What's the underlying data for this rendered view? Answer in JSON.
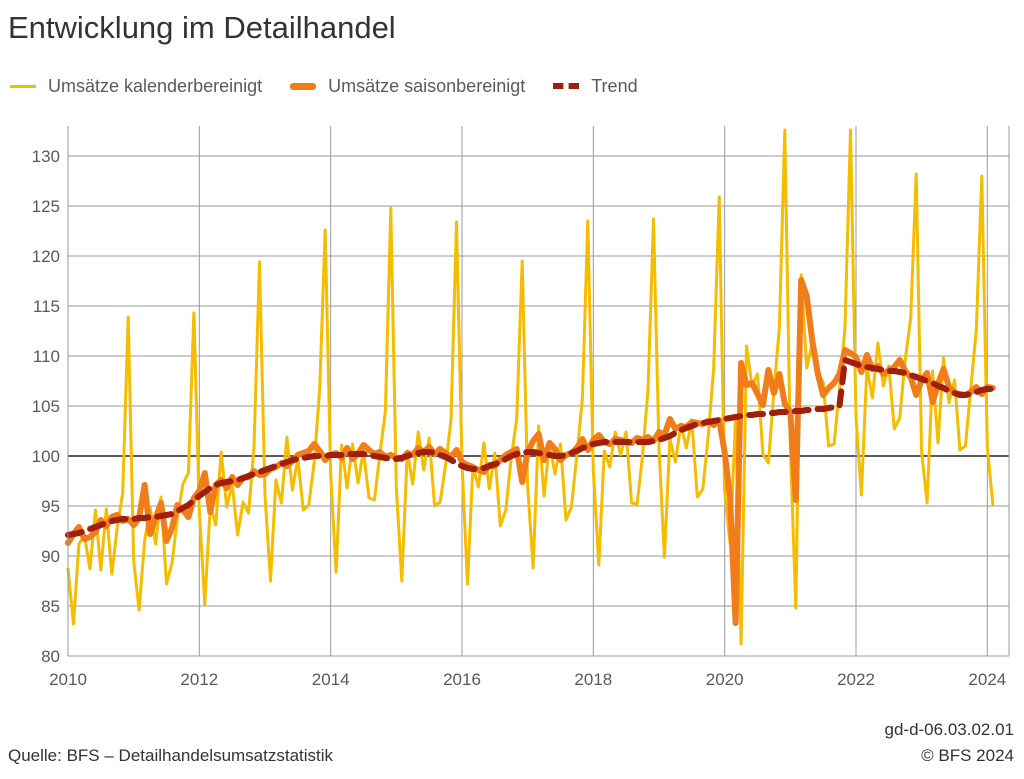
{
  "title": "Entwicklung im Detailhandel",
  "source": "Quelle: BFS – Detailhandelsumsatzstatistik",
  "code": "gd-d-06.03.02.01",
  "copyright": "© BFS 2024",
  "chart_data": {
    "type": "line",
    "title": "Entwicklung im Detailhandel",
    "xlabel": "",
    "ylabel": "",
    "xlim": [
      2010,
      2024.33
    ],
    "ylim": [
      80,
      133
    ],
    "x_ticks": [
      "2010",
      "2012",
      "2014",
      "2016",
      "2018",
      "2020",
      "2022",
      "2024"
    ],
    "y_ticks": [
      "80",
      "85",
      "90",
      "95",
      "100",
      "105",
      "110",
      "115",
      "120",
      "125",
      "130"
    ],
    "reference_line": 100,
    "grid": true,
    "legend_position": "top-left",
    "x_start": 2010,
    "x_step": 0.08333,
    "series": [
      {
        "name": "Umsätze kalenderbereinigt",
        "color": "#F5BC00",
        "style": "solid-thin",
        "values": [
          88.7,
          83.2,
          91.2,
          92.1,
          88.7,
          94.6,
          88.6,
          94.7,
          88.2,
          92.8,
          96.3,
          113.9,
          89.5,
          84.6,
          91.5,
          94.9,
          91.2,
          95.9,
          87.2,
          89.3,
          93.8,
          97.2,
          98.3,
          114.3,
          94.5,
          85.2,
          95.1,
          93.1,
          100.4,
          94.9,
          97.2,
          92.1,
          95.4,
          94.3,
          100.9,
          119.4,
          96.1,
          87.5,
          97.6,
          95.3,
          101.9,
          96.6,
          99.8,
          94.6,
          95.1,
          99.4,
          106.7,
          122.6,
          98.1,
          88.4,
          101.1,
          96.8,
          101.2,
          97.3,
          100.5,
          95.8,
          95.6,
          100.2,
          104.5,
          124.8,
          96.9,
          87.5,
          100.5,
          97.2,
          102.4,
          98.6,
          101.8,
          95.0,
          95.4,
          99.1,
          103.6,
          123.4,
          99.3,
          87.2,
          99.0,
          96.9,
          101.3,
          96.7,
          100.3,
          93.0,
          94.6,
          99.8,
          103.7,
          119.5,
          97.1,
          88.8,
          103.0,
          96.0,
          101.3,
          98.2,
          101.2,
          93.6,
          94.9,
          100.1,
          105.8,
          123.5,
          98.6,
          89.1,
          100.5,
          98.9,
          102.4,
          100.1,
          102.4,
          95.3,
          95.2,
          100.1,
          106.6,
          123.7,
          100.8,
          89.9,
          101.7,
          99.4,
          103.2,
          100.8,
          103.6,
          95.9,
          96.7,
          102.0,
          108.8,
          125.9,
          96.5,
          91.2,
          103.8,
          81.2,
          111.0,
          107.0,
          108.2,
          100.2,
          99.3,
          106.5,
          112.9,
          132.6,
          101.1,
          84.8,
          118.1,
          108.8,
          111.2,
          108.2,
          107.4,
          101.0,
          101.2,
          106.7,
          112.8,
          132.6,
          103.9,
          96.1,
          108.9,
          105.8,
          111.3,
          107.0,
          109.0,
          102.7,
          103.8,
          109.6,
          113.8,
          128.2,
          100.4,
          95.3,
          108.5,
          101.3,
          109.8,
          105.3,
          107.6,
          100.6,
          101.0,
          106.9,
          112.6,
          128.0,
          100.9,
          95.2
        ]
      },
      {
        "name": "Umsätze saisonbereinigt",
        "color": "#F07C1A",
        "style": "solid-thick",
        "values": [
          91.3,
          92.2,
          92.9,
          91.7,
          91.9,
          92.4,
          93.6,
          93.0,
          93.9,
          94.1,
          93.5,
          93.7,
          93.1,
          93.8,
          97.1,
          92.2,
          93.8,
          95.3,
          91.5,
          92.8,
          95.1,
          94.6,
          93.9,
          95.8,
          96.5,
          98.3,
          94.4,
          97.1,
          97.6,
          96.8,
          97.9,
          97.1,
          97.8,
          97.9,
          98.5,
          98.1,
          98.2,
          98.7,
          98.9,
          99.3,
          99.0,
          99.5,
          100.1,
          100.3,
          100.5,
          101.2,
          100.5,
          99.6,
          100.1,
          100.3,
          99.8,
          100.8,
          99.7,
          100.2,
          101.1,
          100.6,
          100.2,
          100.4,
          99.9,
          100.1,
          99.8,
          99.7,
          100.3,
          100.1,
          100.8,
          100.4,
          100.9,
          100.2,
          100.7,
          100.3,
          99.9,
          100.6,
          99.4,
          99.1,
          98.9,
          98.6,
          98.4,
          99.1,
          99.0,
          99.6,
          100.1,
          100.4,
          100.7,
          97.4,
          100.4,
          101.5,
          102.2,
          99.6,
          101.3,
          100.7,
          99.6,
          100.1,
          100.3,
          100.8,
          101.7,
          100.6,
          101.6,
          102.1,
          101.4,
          101.2,
          101.7,
          101.6,
          101.4,
          101.3,
          101.8,
          101.6,
          101.9,
          101.5,
          102.4,
          102.1,
          103.7,
          102.7,
          103.0,
          102.9,
          103.4,
          103.3,
          103.2,
          103.5,
          103.1,
          103.6,
          100.4,
          95.8,
          83.3,
          109.3,
          107.1,
          107.3,
          106.2,
          105.1,
          108.6,
          106.3,
          108.2,
          105.2,
          104.4,
          95.6,
          117.6,
          116.0,
          111.6,
          108.3,
          106.1,
          106.8,
          107.3,
          108.2,
          110.6,
          110.3,
          109.9,
          108.4,
          110.1,
          108.7,
          109.0,
          108.2,
          108.6,
          108.9,
          109.6,
          108.5,
          107.9,
          106.1,
          107.6,
          108.3,
          105.4,
          107.2,
          108.7,
          106.9,
          106.3,
          106.2,
          106.1,
          106.4,
          106.9,
          106.2,
          106.9,
          106.8
        ]
      },
      {
        "name": "Trend",
        "color": "#A01E0C",
        "style": "dashed",
        "values": [
          92.1,
          92.2,
          92.3,
          92.5,
          92.7,
          92.9,
          93.1,
          93.3,
          93.5,
          93.6,
          93.7,
          93.7,
          93.7,
          93.8,
          93.8,
          93.9,
          93.9,
          94.0,
          94.1,
          94.2,
          94.5,
          94.8,
          95.1,
          95.6,
          96.0,
          96.4,
          96.8,
          97.1,
          97.3,
          97.4,
          97.5,
          97.6,
          97.8,
          98.0,
          98.2,
          98.4,
          98.6,
          98.8,
          99.0,
          99.2,
          99.4,
          99.6,
          99.7,
          99.8,
          99.9,
          100.0,
          100.0,
          100.0,
          100.1,
          100.1,
          100.1,
          100.2,
          100.2,
          100.2,
          100.2,
          100.1,
          100.0,
          99.9,
          99.8,
          99.7,
          99.7,
          99.8,
          100.0,
          100.2,
          100.3,
          100.4,
          100.4,
          100.3,
          100.1,
          99.9,
          99.6,
          99.3,
          99.0,
          98.8,
          98.7,
          98.7,
          98.8,
          99.0,
          99.2,
          99.4,
          99.7,
          100.0,
          100.2,
          100.3,
          100.4,
          100.4,
          100.3,
          100.2,
          100.1,
          100.0,
          100.0,
          100.1,
          100.3,
          100.5,
          100.8,
          101.0,
          101.2,
          101.3,
          101.4,
          101.4,
          101.4,
          101.4,
          101.4,
          101.4,
          101.4,
          101.4,
          101.4,
          101.5,
          101.6,
          101.8,
          102.0,
          102.3,
          102.6,
          102.8,
          103.0,
          103.2,
          103.3,
          103.4,
          103.5,
          103.6,
          103.7,
          103.8,
          103.9,
          104.0,
          104.1,
          104.1,
          104.2,
          104.2,
          104.3,
          104.3,
          104.4,
          104.4,
          104.4,
          104.5,
          104.5,
          104.6,
          104.6,
          104.7,
          104.7,
          104.8,
          104.9,
          105.0,
          109.6,
          109.4,
          109.2,
          109.0,
          108.9,
          108.8,
          108.7,
          108.6,
          108.5,
          108.5,
          108.4,
          108.3,
          108.1,
          107.9,
          107.7,
          107.5,
          107.3,
          107.0,
          106.8,
          106.5,
          106.3,
          106.1,
          106.1,
          106.2,
          106.4,
          106.6,
          106.7,
          106.7
        ]
      }
    ]
  }
}
